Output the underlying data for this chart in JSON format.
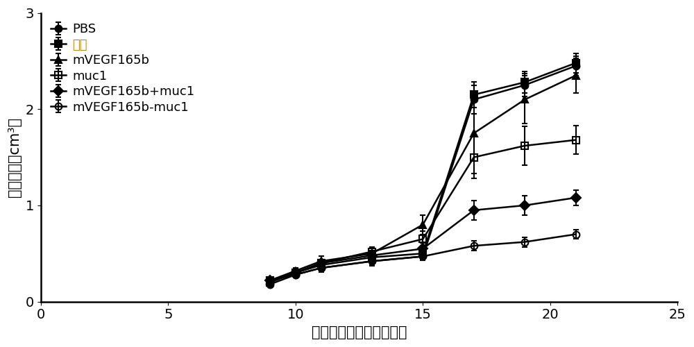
{
  "title": "",
  "xlabel": "舂瘾细胞接种天数（天）",
  "ylabel": "舂瘾体积（cm³）",
  "xlim": [
    0,
    25
  ],
  "ylim": [
    0,
    3
  ],
  "xticks": [
    0,
    5,
    10,
    15,
    20,
    25
  ],
  "yticks": [
    0,
    1,
    2,
    3
  ],
  "series": [
    {
      "label": "PBS",
      "x": [
        9,
        10,
        11,
        13,
        15,
        17,
        19,
        21
      ],
      "y": [
        0.18,
        0.28,
        0.35,
        0.42,
        0.47,
        2.1,
        2.25,
        2.45
      ],
      "yerr": [
        0.02,
        0.03,
        0.04,
        0.05,
        0.04,
        0.15,
        0.12,
        0.1
      ],
      "marker": "o",
      "fillstyle": "full",
      "markersize": 7
    },
    {
      "label": "佐剂",
      "x": [
        9,
        10,
        11,
        13,
        15,
        17,
        19,
        21
      ],
      "y": [
        0.2,
        0.3,
        0.38,
        0.46,
        0.5,
        2.15,
        2.28,
        2.48
      ],
      "yerr": [
        0.02,
        0.03,
        0.04,
        0.05,
        0.05,
        0.13,
        0.11,
        0.1
      ],
      "marker": "s",
      "fillstyle": "full",
      "markersize": 7
    },
    {
      "label": "mVEGF165b",
      "x": [
        9,
        10,
        11,
        13,
        15,
        17,
        19,
        21
      ],
      "y": [
        0.22,
        0.32,
        0.42,
        0.5,
        0.8,
        1.75,
        2.1,
        2.35
      ],
      "yerr": [
        0.02,
        0.03,
        0.05,
        0.06,
        0.1,
        0.42,
        0.25,
        0.18
      ],
      "marker": "^",
      "fillstyle": "full",
      "markersize": 7
    },
    {
      "label": "muc1",
      "x": [
        9,
        10,
        11,
        13,
        15,
        17,
        19,
        21
      ],
      "y": [
        0.22,
        0.3,
        0.4,
        0.52,
        0.65,
        1.5,
        1.62,
        1.68
      ],
      "yerr": [
        0.02,
        0.03,
        0.04,
        0.05,
        0.08,
        0.22,
        0.2,
        0.15
      ],
      "marker": "s",
      "fillstyle": "none",
      "markersize": 7
    },
    {
      "label": "mVEGF165b+muc1",
      "x": [
        9,
        10,
        11,
        13,
        15,
        17,
        19,
        21
      ],
      "y": [
        0.22,
        0.3,
        0.4,
        0.48,
        0.55,
        0.95,
        1.0,
        1.08
      ],
      "yerr": [
        0.02,
        0.03,
        0.04,
        0.05,
        0.06,
        0.1,
        0.1,
        0.08
      ],
      "marker": "D",
      "fillstyle": "full",
      "markersize": 7
    },
    {
      "label": "mVEGF165b-muc1",
      "x": [
        9,
        10,
        11,
        13,
        15,
        17,
        19,
        21
      ],
      "y": [
        0.22,
        0.28,
        0.35,
        0.42,
        0.47,
        0.58,
        0.62,
        0.7
      ],
      "yerr": [
        0.02,
        0.02,
        0.03,
        0.04,
        0.04,
        0.05,
        0.05,
        0.05
      ],
      "marker": "o",
      "fillstyle": "none",
      "markersize": 7
    }
  ],
  "legend_loc": "upper left",
  "background_color": "#ffffff",
  "tick_fontsize": 14,
  "label_fontsize": 15,
  "legend_fontsize": 13,
  "adjuvant_color": "#b8860b"
}
